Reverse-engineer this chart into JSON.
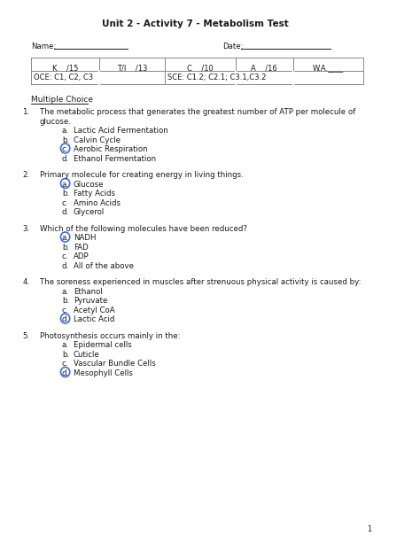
{
  "title": "Unit 2 - Activity 7 - Metabolism Test",
  "name_label": "Name:",
  "date_label": "Date:",
  "table": {
    "row1": [
      "K    /15",
      "T/I    /13",
      "C    /10",
      "A    /16",
      "W.A.____"
    ],
    "row2_left": "OCE: C1, C2, C3",
    "row2_right": "SCE: C1.2; C2.1; C3.1,C3.2"
  },
  "section": "Multiple Choice",
  "questions": [
    {
      "num": "1.",
      "text": "The metabolic process that generates the greatest number of ATP per molecule of\nglucose.",
      "options": [
        {
          "letter": "a.",
          "text": "Lactic Acid Fermentation",
          "circled": false
        },
        {
          "letter": "b.",
          "text": "Calvin Cycle",
          "circled": false
        },
        {
          "letter": "c.",
          "text": "Aerobic Respiration",
          "circled": true
        },
        {
          "letter": "d.",
          "text": "Ethanol Fermentation",
          "circled": false
        }
      ]
    },
    {
      "num": "2.",
      "text": "Primary molecule for creating energy in living things.",
      "options": [
        {
          "letter": "a.",
          "text": "Glucose",
          "circled": true
        },
        {
          "letter": "b.",
          "text": "Fatty Acids",
          "circled": false
        },
        {
          "letter": "c.",
          "text": "Amino Acids",
          "circled": false
        },
        {
          "letter": "d.",
          "text": "Glycerol",
          "circled": false
        }
      ]
    },
    {
      "num": "3.",
      "text": "Which of the following molecules have been reduced?",
      "options": [
        {
          "letter": "a.",
          "text": "NADH",
          "circled": true
        },
        {
          "letter": "b.",
          "text": "FAD",
          "circled": false
        },
        {
          "letter": "c.",
          "text": "ADP",
          "circled": false
        },
        {
          "letter": "d.",
          "text": "All of the above",
          "circled": false
        }
      ]
    },
    {
      "num": "4.",
      "text": "The soreness experienced in muscles after strenuous physical activity is caused by:",
      "options": [
        {
          "letter": "a.",
          "text": "Ethanol",
          "circled": false
        },
        {
          "letter": "b.",
          "text": "Pyruvate",
          "circled": false
        },
        {
          "letter": "c.",
          "text": "Acetyl CoA",
          "circled": false
        },
        {
          "letter": "d.",
          "text": "Lactic Acid",
          "circled": true
        }
      ]
    },
    {
      "num": "5.",
      "text": "Photosynthesis occurs mainly in the:",
      "options": [
        {
          "letter": "a.",
          "text": "Epidermal cells",
          "circled": false
        },
        {
          "letter": "b.",
          "text": "Cuticle",
          "circled": false
        },
        {
          "letter": "c.",
          "text": "Vascular Bundle Cells",
          "circled": false
        },
        {
          "letter": "d.",
          "text": "Mesophyll Cells",
          "circled": true
        }
      ]
    }
  ],
  "circle_color": "#4169E1",
  "bg_color": "#ffffff",
  "text_color": "#1a1a1a",
  "page_number": "1"
}
